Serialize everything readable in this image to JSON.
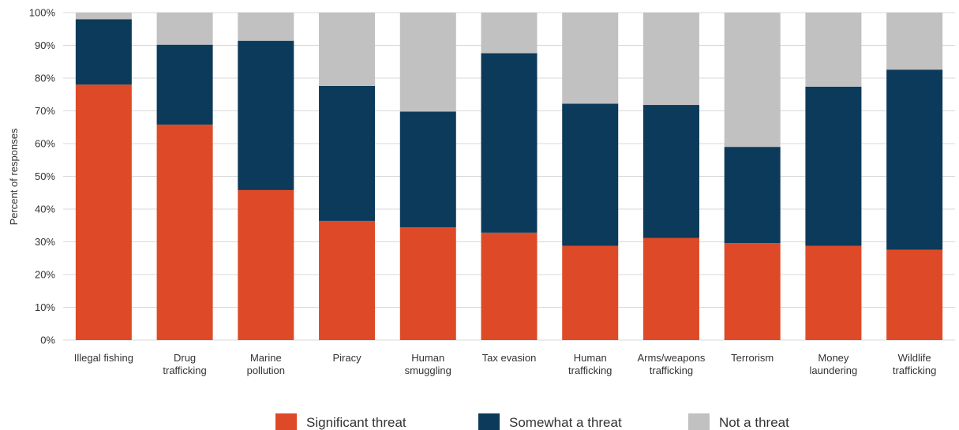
{
  "chart_data": {
    "type": "bar",
    "stacked": true,
    "ylabel": "Percent of responses",
    "ylim": [
      0,
      100
    ],
    "yticks": [
      0,
      10,
      20,
      30,
      40,
      50,
      60,
      70,
      80,
      90,
      100
    ],
    "ytick_labels": [
      "0%",
      "10%",
      "20%",
      "30%",
      "40%",
      "50%",
      "60%",
      "70%",
      "80%",
      "90%",
      "100%"
    ],
    "grid": true,
    "legend_position": "bottom",
    "categories": [
      [
        "Illegal fishing"
      ],
      [
        "Drug",
        "trafficking"
      ],
      [
        "Marine",
        "pollution"
      ],
      [
        "Piracy"
      ],
      [
        "Human",
        "smuggling"
      ],
      [
        "Tax evasion"
      ],
      [
        "Human",
        "trafficking"
      ],
      [
        "Arms/weapons",
        "trafficking"
      ],
      [
        "Terrorism"
      ],
      [
        "Money",
        "laundering"
      ],
      [
        "Wildlife",
        "trafficking"
      ]
    ],
    "series": [
      {
        "name": "Significant threat",
        "color": "#de4a27",
        "values": [
          78,
          65.8,
          45.8,
          36.4,
          34.4,
          32.8,
          28.8,
          31.2,
          29.6,
          28.8,
          27.6
        ]
      },
      {
        "name": "Somewhat a threat",
        "color": "#0c3a5a",
        "values": [
          20,
          24.4,
          45.6,
          41.2,
          35.4,
          54.8,
          43.4,
          40.6,
          29.4,
          48.6,
          55.0
        ]
      },
      {
        "name": "Not a threat",
        "color": "#c1c1c1",
        "values": [
          2,
          9.8,
          8.6,
          22.4,
          30.2,
          12.4,
          27.8,
          28.2,
          41.0,
          22.6,
          17.4
        ]
      }
    ]
  }
}
